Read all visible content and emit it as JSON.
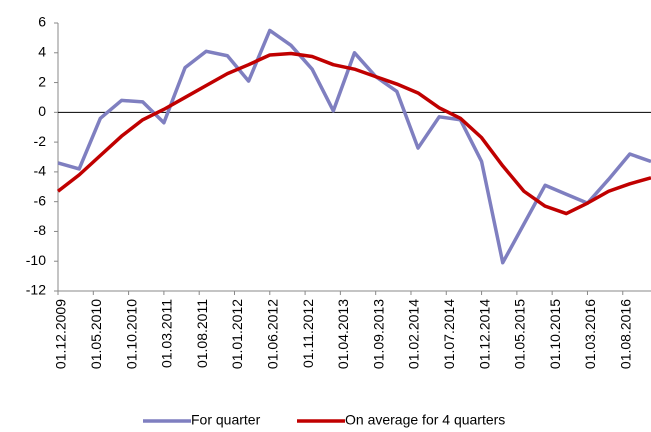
{
  "chart_data": {
    "type": "line",
    "x": [
      0,
      1,
      2,
      3,
      4,
      5,
      6,
      7,
      8,
      9,
      10,
      11,
      12,
      13,
      14,
      15,
      16,
      17,
      18,
      19,
      20,
      21,
      22,
      23,
      24,
      25,
      26,
      27,
      28
    ],
    "xlim": [
      0,
      28
    ],
    "xticks": [
      {
        "value": 0,
        "label": "01.12.2009"
      },
      {
        "value": 1.667,
        "label": "01.05.2010"
      },
      {
        "value": 3.333,
        "label": "01.10.2010"
      },
      {
        "value": 5,
        "label": "01.03.2011"
      },
      {
        "value": 6.667,
        "label": "01.08.2011"
      },
      {
        "value": 8.333,
        "label": "01.01.2012"
      },
      {
        "value": 10,
        "label": "01.06.2012"
      },
      {
        "value": 11.667,
        "label": "01.11.2012"
      },
      {
        "value": 13.333,
        "label": "01.04.2013"
      },
      {
        "value": 15,
        "label": "01.09.2013"
      },
      {
        "value": 16.667,
        "label": "01.02.2014"
      },
      {
        "value": 18.333,
        "label": "01.07.2014"
      },
      {
        "value": 20,
        "label": "01.12.2014"
      },
      {
        "value": 21.667,
        "label": "01.05.2015"
      },
      {
        "value": 23.333,
        "label": "01.10.2015"
      },
      {
        "value": 25,
        "label": "01.03.2016"
      },
      {
        "value": 26.667,
        "label": "01.08.2016"
      }
    ],
    "ylim": [
      -12,
      6
    ],
    "yticks": [
      -12,
      -10,
      -8,
      -6,
      -4,
      -2,
      0,
      2,
      4,
      6
    ],
    "series": [
      {
        "name": "For quarter",
        "color": "#7f7fc0",
        "values": [
          -3.4,
          -3.8,
          -0.4,
          0.8,
          0.7,
          -0.7,
          3.0,
          4.1,
          3.8,
          2.1,
          5.5,
          4.5,
          2.9,
          0.1,
          4.0,
          2.4,
          1.4,
          -2.4,
          -0.3,
          -0.5,
          -3.3,
          -10.1,
          -7.5,
          -4.9,
          -5.5,
          -6.1,
          -4.5,
          -2.8,
          -3.3
        ]
      },
      {
        "name": "On average for 4 quarters",
        "color": "#c00000",
        "values": [
          -5.3,
          -4.2,
          -2.9,
          -1.6,
          -0.5,
          0.2,
          1.0,
          1.8,
          2.6,
          3.2,
          3.85,
          3.95,
          3.75,
          3.2,
          2.9,
          2.4,
          1.9,
          1.3,
          0.3,
          -0.4,
          -1.7,
          -3.6,
          -5.3,
          -6.3,
          -6.8,
          -6.1,
          -5.3,
          -4.8,
          -4.4
        ]
      }
    ]
  }
}
